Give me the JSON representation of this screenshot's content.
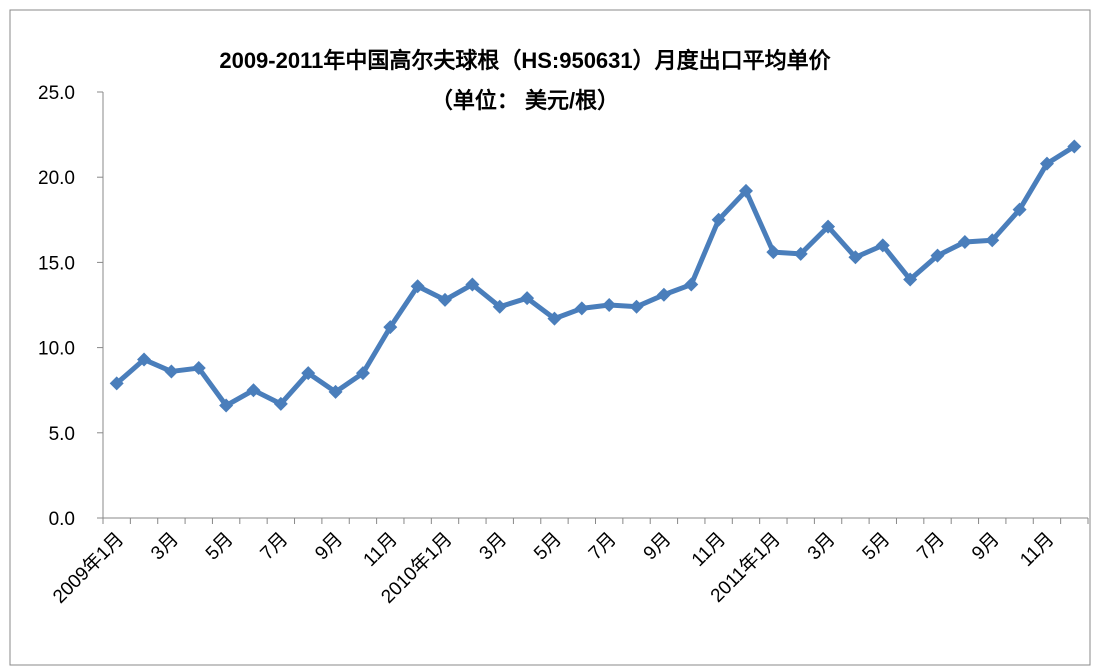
{
  "chart_data": {
    "type": "line",
    "title": "2009-2011年中国高尔夫球根（HS:950631）月度出口平均单价",
    "subtitle": "（单位： 美元/根）",
    "categories": [
      "2009年1月",
      null,
      "3月",
      null,
      "5月",
      null,
      "7月",
      null,
      "9月",
      null,
      "11月",
      null,
      "2010年1月",
      null,
      "3月",
      null,
      "5月",
      null,
      "7月",
      null,
      "9月",
      null,
      "11月",
      null,
      "2011年1月",
      null,
      "3月",
      null,
      "5月",
      null,
      "7月",
      null,
      "9月",
      null,
      "11月",
      null
    ],
    "series": [
      {
        "name": "月度出口平均单价",
        "color": "#4a7ebb",
        "values": [
          7.9,
          9.3,
          8.6,
          8.8,
          6.6,
          7.5,
          6.7,
          8.5,
          7.4,
          8.5,
          11.2,
          13.6,
          12.8,
          13.7,
          12.4,
          12.9,
          11.7,
          12.3,
          12.5,
          12.4,
          13.1,
          13.7,
          17.5,
          19.2,
          15.6,
          15.5,
          17.1,
          15.3,
          16.0,
          14.0,
          15.4,
          16.2,
          16.3,
          18.1,
          20.8,
          21.8
        ]
      }
    ],
    "ylim": [
      0,
      25
    ],
    "yticks": [
      {
        "value": 0,
        "label": "0.0"
      },
      {
        "value": 5,
        "label": "5.0"
      },
      {
        "value": 10,
        "label": "10.0"
      },
      {
        "value": 15,
        "label": "15.0"
      },
      {
        "value": 20,
        "label": "20.0"
      },
      {
        "value": 25,
        "label": "25.0"
      }
    ],
    "grid": false
  }
}
